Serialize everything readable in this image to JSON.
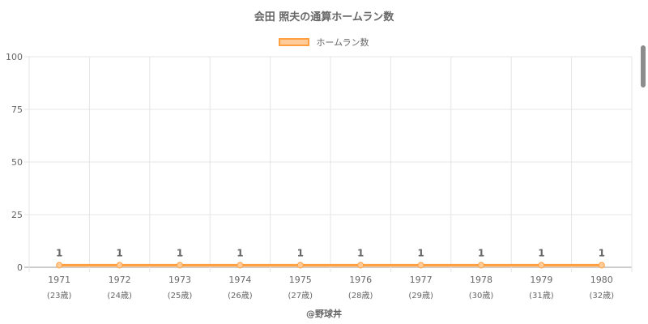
{
  "chart_data": {
    "type": "line",
    "title": "会田 照夫の通算ホームラン数",
    "categories": [
      "1971",
      "1972",
      "1973",
      "1974",
      "1975",
      "1976",
      "1977",
      "1978",
      "1979",
      "1980"
    ],
    "age_labels": [
      "(23歳)",
      "(24歳)",
      "(25歳)",
      "(26歳)",
      "(27歳)",
      "(28歳)",
      "(29歳)",
      "(30歳)",
      "(31歳)",
      "(32歳)"
    ],
    "series": [
      {
        "name": "ホームラン数",
        "values": [
          1,
          1,
          1,
          1,
          1,
          1,
          1,
          1,
          1,
          1
        ]
      }
    ],
    "ylim": [
      0,
      100
    ],
    "yticks": [
      0,
      25,
      50,
      75,
      100
    ],
    "xlabel": "",
    "ylabel": "",
    "grid": true,
    "legend_position": "top-center",
    "colors": {
      "line": "#ff9f40",
      "fill": "#ffcc99",
      "grid": "#e5e5e5",
      "axis": "#999999",
      "text": "#666666"
    }
  },
  "source": "@野球丼"
}
